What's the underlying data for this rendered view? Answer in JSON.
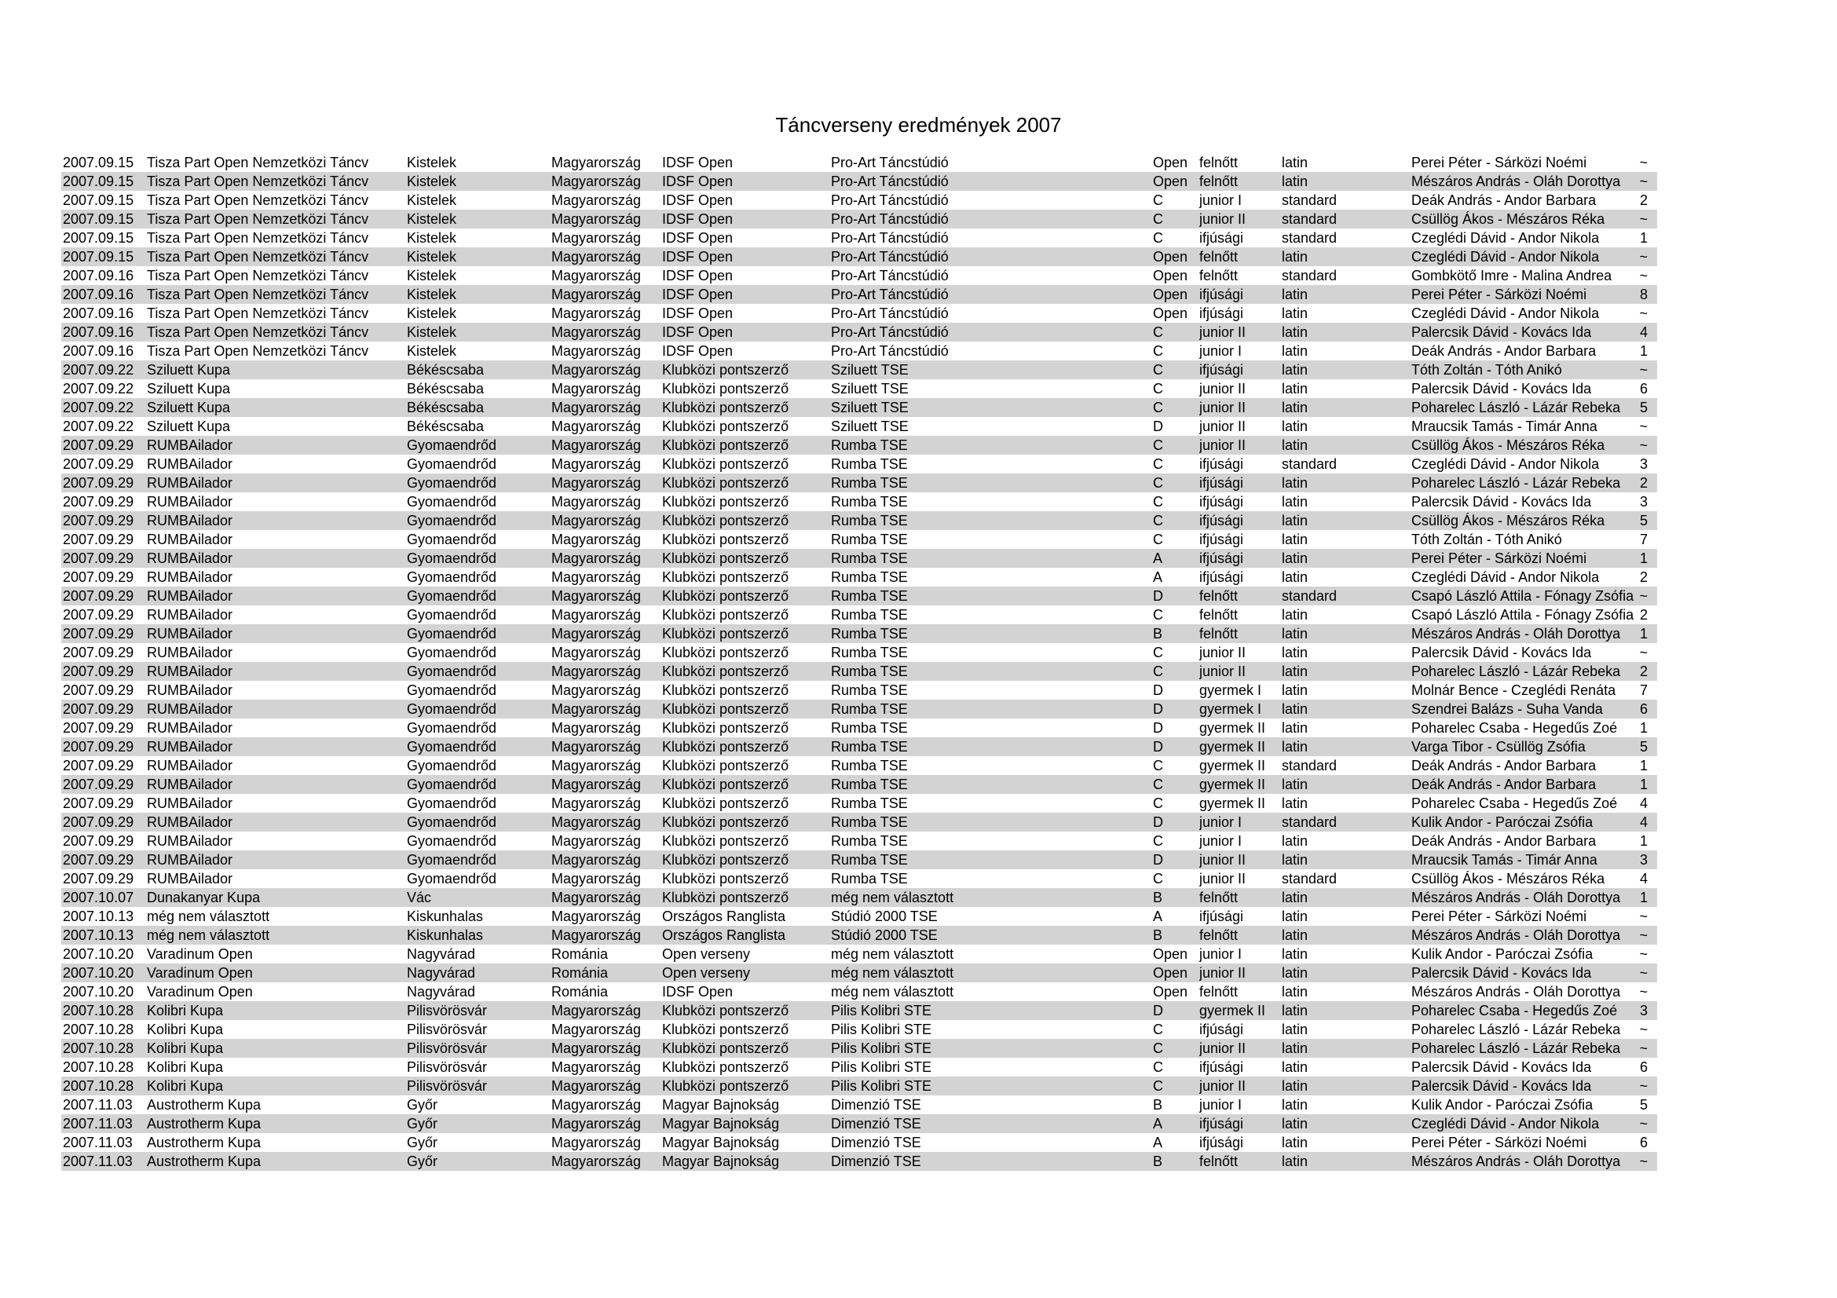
{
  "title": "Táncverseny eredmények 2007",
  "colors": {
    "background": "#ffffff",
    "row_alternate": "#d3d3d3",
    "text": "#000000"
  },
  "table": {
    "column_keys": [
      "date",
      "competition",
      "city",
      "country",
      "category",
      "club",
      "class",
      "age_group",
      "style",
      "couple",
      "result"
    ],
    "rows": [
      [
        "2007.09.15",
        "Tisza Part Open Nemzetközi Táncv",
        "Kistelek",
        "Magyarország",
        "IDSF Open",
        "Pro-Art Táncstúdió",
        "Open",
        "felnőtt",
        "latin",
        "Perei Péter - Sárközi Noémi",
        "~"
      ],
      [
        "2007.09.15",
        "Tisza Part Open Nemzetközi Táncv",
        "Kistelek",
        "Magyarország",
        "IDSF Open",
        "Pro-Art Táncstúdió",
        "Open",
        "felnőtt",
        "latin",
        "Mészáros András - Oláh Dorottya",
        "~"
      ],
      [
        "2007.09.15",
        "Tisza Part Open Nemzetközi Táncv",
        "Kistelek",
        "Magyarország",
        "IDSF Open",
        "Pro-Art Táncstúdió",
        "C",
        "junior I",
        "standard",
        "Deák András - Andor Barbara",
        "2"
      ],
      [
        "2007.09.15",
        "Tisza Part Open Nemzetközi Táncv",
        "Kistelek",
        "Magyarország",
        "IDSF Open",
        "Pro-Art Táncstúdió",
        "C",
        "junior II",
        "standard",
        "Csüllög Ákos - Mészáros Réka",
        "~"
      ],
      [
        "2007.09.15",
        "Tisza Part Open Nemzetközi Táncv",
        "Kistelek",
        "Magyarország",
        "IDSF Open",
        "Pro-Art Táncstúdió",
        "C",
        "ifjúsági",
        "standard",
        "Czeglédi Dávid - Andor Nikola",
        "1"
      ],
      [
        "2007.09.15",
        "Tisza Part Open Nemzetközi Táncv",
        "Kistelek",
        "Magyarország",
        "IDSF Open",
        "Pro-Art Táncstúdió",
        "Open",
        "felnőtt",
        "latin",
        "Czeglédi Dávid - Andor Nikola",
        "~"
      ],
      [
        "2007.09.16",
        "Tisza Part Open Nemzetközi Táncv",
        "Kistelek",
        "Magyarország",
        "IDSF Open",
        "Pro-Art Táncstúdió",
        "Open",
        "felnőtt",
        "standard",
        "Gombkötő Imre - Malina Andrea",
        "~"
      ],
      [
        "2007.09.16",
        "Tisza Part Open Nemzetközi Táncv",
        "Kistelek",
        "Magyarország",
        "IDSF Open",
        "Pro-Art Táncstúdió",
        "Open",
        "ifjúsági",
        "latin",
        "Perei Péter - Sárközi Noémi",
        "8"
      ],
      [
        "2007.09.16",
        "Tisza Part Open Nemzetközi Táncv",
        "Kistelek",
        "Magyarország",
        "IDSF Open",
        "Pro-Art Táncstúdió",
        "Open",
        "ifjúsági",
        "latin",
        "Czeglédi Dávid - Andor Nikola",
        "~"
      ],
      [
        "2007.09.16",
        "Tisza Part Open Nemzetközi Táncv",
        "Kistelek",
        "Magyarország",
        "IDSF Open",
        "Pro-Art Táncstúdió",
        "C",
        "junior II",
        "latin",
        "Palercsik Dávid - Kovács Ida",
        "4"
      ],
      [
        "2007.09.16",
        "Tisza Part Open Nemzetközi Táncv",
        "Kistelek",
        "Magyarország",
        "IDSF Open",
        "Pro-Art Táncstúdió",
        "C",
        "junior I",
        "latin",
        "Deák András - Andor Barbara",
        "1"
      ],
      [
        "2007.09.22",
        "Sziluett Kupa",
        "Békéscsaba",
        "Magyarország",
        "Klubközi pontszerző",
        "Sziluett TSE",
        "C",
        "ifjúsági",
        "latin",
        "Tóth Zoltán - Tóth Anikó",
        "~"
      ],
      [
        "2007.09.22",
        "Sziluett Kupa",
        "Békéscsaba",
        "Magyarország",
        "Klubközi pontszerző",
        "Sziluett TSE",
        "C",
        "junior II",
        "latin",
        "Palercsik Dávid - Kovács Ida",
        "6"
      ],
      [
        "2007.09.22",
        "Sziluett Kupa",
        "Békéscsaba",
        "Magyarország",
        "Klubközi pontszerző",
        "Sziluett TSE",
        "C",
        "junior II",
        "latin",
        "Poharelec László - Lázár Rebeka",
        "5"
      ],
      [
        "2007.09.22",
        "Sziluett Kupa",
        "Békéscsaba",
        "Magyarország",
        "Klubközi pontszerző",
        "Sziluett TSE",
        "D",
        "junior II",
        "latin",
        "Mraucsik Tamás - Timár Anna",
        "~"
      ],
      [
        "2007.09.29",
        "RUMBAilador",
        "Gyomaendrőd",
        "Magyarország",
        "Klubközi pontszerző",
        "Rumba TSE",
        "C",
        "junior II",
        "latin",
        "Csüllög Ákos - Mészáros Réka",
        "~"
      ],
      [
        "2007.09.29",
        "RUMBAilador",
        "Gyomaendrőd",
        "Magyarország",
        "Klubközi pontszerző",
        "Rumba TSE",
        "C",
        "ifjúsági",
        "standard",
        "Czeglédi Dávid - Andor Nikola",
        "3"
      ],
      [
        "2007.09.29",
        "RUMBAilador",
        "Gyomaendrőd",
        "Magyarország",
        "Klubközi pontszerző",
        "Rumba TSE",
        "C",
        "ifjúsági",
        "latin",
        "Poharelec László - Lázár Rebeka",
        "2"
      ],
      [
        "2007.09.29",
        "RUMBAilador",
        "Gyomaendrőd",
        "Magyarország",
        "Klubközi pontszerző",
        "Rumba TSE",
        "C",
        "ifjúsági",
        "latin",
        "Palercsik Dávid - Kovács Ida",
        "3"
      ],
      [
        "2007.09.29",
        "RUMBAilador",
        "Gyomaendrőd",
        "Magyarország",
        "Klubközi pontszerző",
        "Rumba TSE",
        "C",
        "ifjúsági",
        "latin",
        "Csüllög Ákos - Mészáros Réka",
        "5"
      ],
      [
        "2007.09.29",
        "RUMBAilador",
        "Gyomaendrőd",
        "Magyarország",
        "Klubközi pontszerző",
        "Rumba TSE",
        "C",
        "ifjúsági",
        "latin",
        "Tóth Zoltán - Tóth Anikó",
        "7"
      ],
      [
        "2007.09.29",
        "RUMBAilador",
        "Gyomaendrőd",
        "Magyarország",
        "Klubközi pontszerző",
        "Rumba TSE",
        "A",
        "ifjúsági",
        "latin",
        "Perei Péter - Sárközi Noémi",
        "1"
      ],
      [
        "2007.09.29",
        "RUMBAilador",
        "Gyomaendrőd",
        "Magyarország",
        "Klubközi pontszerző",
        "Rumba TSE",
        "A",
        "ifjúsági",
        "latin",
        "Czeglédi Dávid - Andor Nikola",
        "2"
      ],
      [
        "2007.09.29",
        "RUMBAilador",
        "Gyomaendrőd",
        "Magyarország",
        "Klubközi pontszerző",
        "Rumba TSE",
        "D",
        "felnőtt",
        "standard",
        "Csapó László Attila - Fónagy Zsófia",
        "~"
      ],
      [
        "2007.09.29",
        "RUMBAilador",
        "Gyomaendrőd",
        "Magyarország",
        "Klubközi pontszerző",
        "Rumba TSE",
        "C",
        "felnőtt",
        "latin",
        "Csapó László Attila - Fónagy Zsófia",
        "2"
      ],
      [
        "2007.09.29",
        "RUMBAilador",
        "Gyomaendrőd",
        "Magyarország",
        "Klubközi pontszerző",
        "Rumba TSE",
        "B",
        "felnőtt",
        "latin",
        "Mészáros András - Oláh Dorottya",
        "1"
      ],
      [
        "2007.09.29",
        "RUMBAilador",
        "Gyomaendrőd",
        "Magyarország",
        "Klubközi pontszerző",
        "Rumba TSE",
        "C",
        "junior II",
        "latin",
        "Palercsik Dávid - Kovács Ida",
        "~"
      ],
      [
        "2007.09.29",
        "RUMBAilador",
        "Gyomaendrőd",
        "Magyarország",
        "Klubközi pontszerző",
        "Rumba TSE",
        "C",
        "junior II",
        "latin",
        "Poharelec László - Lázár Rebeka",
        "2"
      ],
      [
        "2007.09.29",
        "RUMBAilador",
        "Gyomaendrőd",
        "Magyarország",
        "Klubközi pontszerző",
        "Rumba TSE",
        "D",
        "gyermek I",
        "latin",
        "Molnár Bence - Czeglédi Renáta",
        "7"
      ],
      [
        "2007.09.29",
        "RUMBAilador",
        "Gyomaendrőd",
        "Magyarország",
        "Klubközi pontszerző",
        "Rumba TSE",
        "D",
        "gyermek I",
        "latin",
        "Szendrei Balázs - Suha Vanda",
        "6"
      ],
      [
        "2007.09.29",
        "RUMBAilador",
        "Gyomaendrőd",
        "Magyarország",
        "Klubközi pontszerző",
        "Rumba TSE",
        "D",
        "gyermek II",
        "latin",
        "Poharelec Csaba - Hegedűs Zoé",
        "1"
      ],
      [
        "2007.09.29",
        "RUMBAilador",
        "Gyomaendrőd",
        "Magyarország",
        "Klubközi pontszerző",
        "Rumba TSE",
        "D",
        "gyermek II",
        "latin",
        "Varga Tibor - Csüllög Zsófia",
        "5"
      ],
      [
        "2007.09.29",
        "RUMBAilador",
        "Gyomaendrőd",
        "Magyarország",
        "Klubközi pontszerző",
        "Rumba TSE",
        "C",
        "gyermek II",
        "standard",
        "Deák András - Andor Barbara",
        "1"
      ],
      [
        "2007.09.29",
        "RUMBAilador",
        "Gyomaendrőd",
        "Magyarország",
        "Klubközi pontszerző",
        "Rumba TSE",
        "C",
        "gyermek II",
        "latin",
        "Deák András - Andor Barbara",
        "1"
      ],
      [
        "2007.09.29",
        "RUMBAilador",
        "Gyomaendrőd",
        "Magyarország",
        "Klubközi pontszerző",
        "Rumba TSE",
        "C",
        "gyermek II",
        "latin",
        "Poharelec Csaba - Hegedűs Zoé",
        "4"
      ],
      [
        "2007.09.29",
        "RUMBAilador",
        "Gyomaendrőd",
        "Magyarország",
        "Klubközi pontszerző",
        "Rumba TSE",
        "D",
        "junior I",
        "standard",
        "Kulik Andor - Paróczai Zsófia",
        "4"
      ],
      [
        "2007.09.29",
        "RUMBAilador",
        "Gyomaendrőd",
        "Magyarország",
        "Klubközi pontszerző",
        "Rumba TSE",
        "C",
        "junior I",
        "latin",
        "Deák András - Andor Barbara",
        "1"
      ],
      [
        "2007.09.29",
        "RUMBAilador",
        "Gyomaendrőd",
        "Magyarország",
        "Klubközi pontszerző",
        "Rumba TSE",
        "D",
        "junior II",
        "latin",
        "Mraucsik Tamás - Timár Anna",
        "3"
      ],
      [
        "2007.09.29",
        "RUMBAilador",
        "Gyomaendrőd",
        "Magyarország",
        "Klubközi pontszerző",
        "Rumba TSE",
        "C",
        "junior II",
        "standard",
        "Csüllög Ákos - Mészáros Réka",
        "4"
      ],
      [
        "2007.10.07",
        "Dunakanyar Kupa",
        "Vác",
        "Magyarország",
        "Klubközi pontszerző",
        "még nem választott",
        "B",
        "felnőtt",
        "latin",
        "Mészáros András - Oláh Dorottya",
        "1"
      ],
      [
        "2007.10.13",
        "még nem választott",
        "Kiskunhalas",
        "Magyarország",
        "Országos Ranglista",
        "Stúdió 2000 TSE",
        "A",
        "ifjúsági",
        "latin",
        "Perei Péter - Sárközi Noémi",
        "~"
      ],
      [
        "2007.10.13",
        "még nem választott",
        "Kiskunhalas",
        "Magyarország",
        "Országos Ranglista",
        "Stúdió 2000 TSE",
        "B",
        "felnőtt",
        "latin",
        "Mészáros András - Oláh Dorottya",
        "~"
      ],
      [
        "2007.10.20",
        "Varadinum Open",
        "Nagyvárad",
        "Románia",
        "Open verseny",
        "még nem választott",
        "Open",
        "junior I",
        "latin",
        "Kulik Andor - Paróczai Zsófia",
        "~"
      ],
      [
        "2007.10.20",
        "Varadinum Open",
        "Nagyvárad",
        "Románia",
        "Open verseny",
        "még nem választott",
        "Open",
        "junior II",
        "latin",
        "Palercsik Dávid - Kovács Ida",
        "~"
      ],
      [
        "2007.10.20",
        "Varadinum Open",
        "Nagyvárad",
        "Románia",
        "IDSF Open",
        "még nem választott",
        "Open",
        "felnőtt",
        "latin",
        "Mészáros András - Oláh Dorottya",
        "~"
      ],
      [
        "2007.10.28",
        "Kolibri Kupa",
        "Pilisvörösvár",
        "Magyarország",
        "Klubközi pontszerző",
        "Pilis Kolibri STE",
        "D",
        "gyermek II",
        "latin",
        "Poharelec Csaba - Hegedűs Zoé",
        "3"
      ],
      [
        "2007.10.28",
        "Kolibri Kupa",
        "Pilisvörösvár",
        "Magyarország",
        "Klubközi pontszerző",
        "Pilis Kolibri STE",
        "C",
        "ifjúsági",
        "latin",
        "Poharelec László - Lázár Rebeka",
        "~"
      ],
      [
        "2007.10.28",
        "Kolibri Kupa",
        "Pilisvörösvár",
        "Magyarország",
        "Klubközi pontszerző",
        "Pilis Kolibri STE",
        "C",
        "junior II",
        "latin",
        "Poharelec László - Lázár Rebeka",
        "~"
      ],
      [
        "2007.10.28",
        "Kolibri Kupa",
        "Pilisvörösvár",
        "Magyarország",
        "Klubközi pontszerző",
        "Pilis Kolibri STE",
        "C",
        "ifjúsági",
        "latin",
        "Palercsik Dávid - Kovács Ida",
        "6"
      ],
      [
        "2007.10.28",
        "Kolibri Kupa",
        "Pilisvörösvár",
        "Magyarország",
        "Klubközi pontszerző",
        "Pilis Kolibri STE",
        "C",
        "junior II",
        "latin",
        "Palercsik Dávid - Kovács Ida",
        "~"
      ],
      [
        "2007.11.03",
        "Austrotherm Kupa",
        "Győr",
        "Magyarország",
        "Magyar Bajnokság",
        "Dimenzió TSE",
        "B",
        "junior I",
        "latin",
        "Kulik Andor - Paróczai Zsófia",
        "5"
      ],
      [
        "2007.11.03",
        "Austrotherm Kupa",
        "Győr",
        "Magyarország",
        "Magyar Bajnokság",
        "Dimenzió TSE",
        "A",
        "ifjúsági",
        "latin",
        "Czeglédi Dávid - Andor Nikola",
        "~"
      ],
      [
        "2007.11.03",
        "Austrotherm Kupa",
        "Győr",
        "Magyarország",
        "Magyar Bajnokság",
        "Dimenzió TSE",
        "A",
        "ifjúsági",
        "latin",
        "Perei Péter - Sárközi Noémi",
        "6"
      ],
      [
        "2007.11.03",
        "Austrotherm Kupa",
        "Győr",
        "Magyarország",
        "Magyar Bajnokság",
        "Dimenzió TSE",
        "B",
        "felnőtt",
        "latin",
        "Mészáros András - Oláh Dorottya",
        "~"
      ]
    ]
  }
}
